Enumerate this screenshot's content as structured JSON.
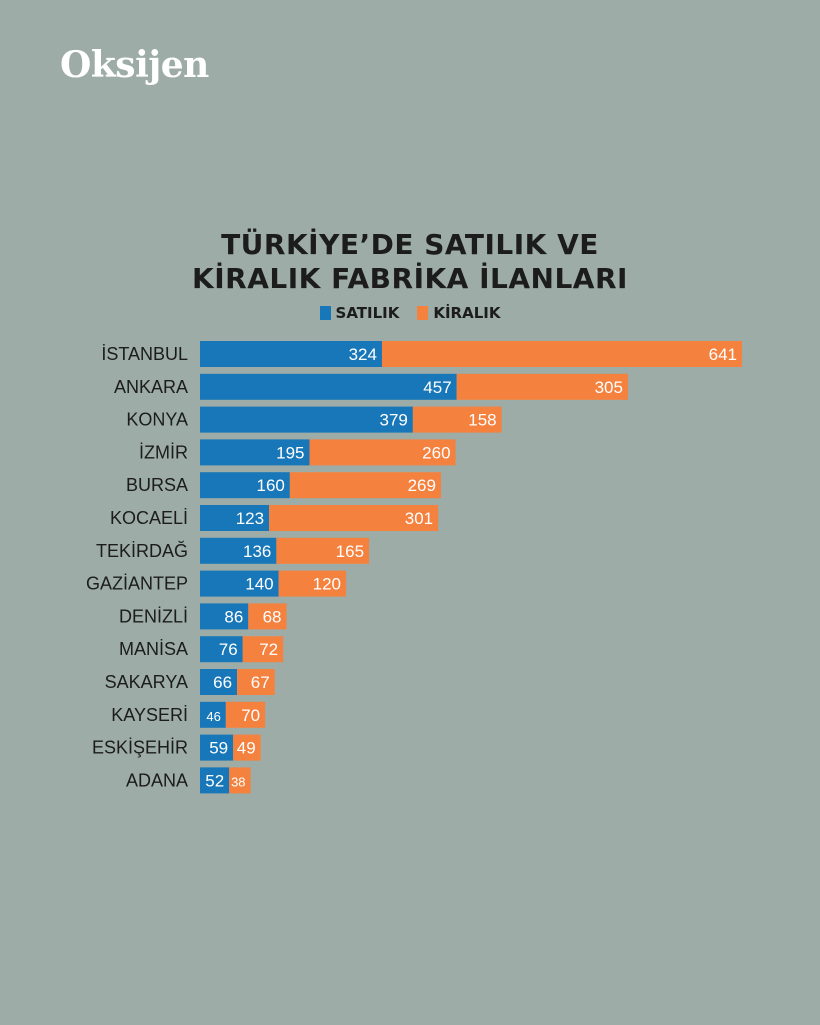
{
  "brand": "Oksijen",
  "colors": {
    "satilik": "#1877b8",
    "kiralik": "#f5813e",
    "background": "#9daca6"
  },
  "chart_data": {
    "type": "bar",
    "orientation": "horizontal",
    "stacked": true,
    "title": [
      "TÜRKİYE’DE SATILIK VE",
      "KİRALIK FABRİKA İLANLARI"
    ],
    "legend_position": "top",
    "categories": [
      "İSTANBUL",
      "ANKARA",
      "KONYA",
      "İZMİR",
      "BURSA",
      "KOCAELİ",
      "TEKİRDAĞ",
      "GAZİANTEP",
      "DENİZLİ",
      "MANİSA",
      "SAKARYA",
      "KAYSERİ",
      "ESKİŞEHİR",
      "ADANA"
    ],
    "series": [
      {
        "name": "SATILIK",
        "values": [
          324,
          457,
          379,
          195,
          160,
          123,
          136,
          140,
          86,
          76,
          66,
          46,
          59,
          52
        ]
      },
      {
        "name": "KİRALIK",
        "values": [
          641,
          305,
          158,
          260,
          269,
          301,
          165,
          120,
          68,
          72,
          67,
          70,
          49,
          38
        ]
      }
    ],
    "grid": false
  }
}
